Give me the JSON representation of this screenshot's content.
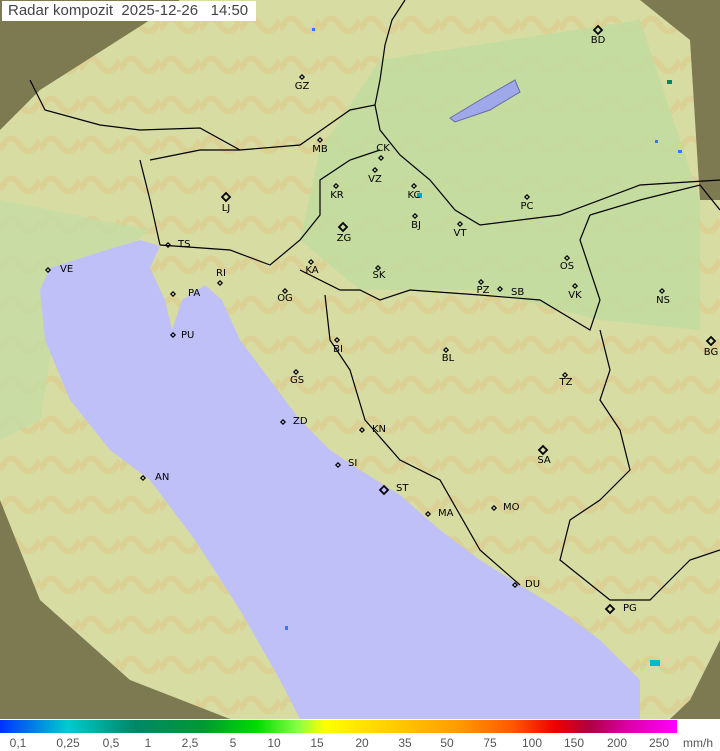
{
  "title": "Radar kompozit  2025-12-26   14:50",
  "colors": {
    "sea": "#c0c0f8",
    "land": "#c8dca0",
    "outside_coverage": "#7d7a52",
    "border": "#000000"
  },
  "stations": [
    {
      "code": "GZ"
    },
    {
      "code": "BD"
    },
    {
      "code": "MB"
    },
    {
      "code": "CK"
    },
    {
      "code": "VZ"
    },
    {
      "code": "KR"
    },
    {
      "code": "KC"
    },
    {
      "code": "LJ"
    },
    {
      "code": "ZG"
    },
    {
      "code": "BJ"
    },
    {
      "code": "VT"
    },
    {
      "code": "PC"
    },
    {
      "code": "TS"
    },
    {
      "code": "VE"
    },
    {
      "code": "KA"
    },
    {
      "code": "SK"
    },
    {
      "code": "OS"
    },
    {
      "code": "RI"
    },
    {
      "code": "PA"
    },
    {
      "code": "OG"
    },
    {
      "code": "PZ"
    },
    {
      "code": "SB"
    },
    {
      "code": "VK"
    },
    {
      "code": "NS"
    },
    {
      "code": "PU"
    },
    {
      "code": "BG"
    },
    {
      "code": "BI"
    },
    {
      "code": "BL"
    },
    {
      "code": "GS"
    },
    {
      "code": "TZ"
    },
    {
      "code": "ZD"
    },
    {
      "code": "KN"
    },
    {
      "code": "SA"
    },
    {
      "code": "SI"
    },
    {
      "code": "AN"
    },
    {
      "code": "ST"
    },
    {
      "code": "MA"
    },
    {
      "code": "MO"
    },
    {
      "code": "DU"
    },
    {
      "code": "PG"
    }
  ],
  "legend": {
    "unit": "mm/h",
    "ticks": [
      "0,1",
      "0,25",
      "0,5",
      "1",
      "2,5",
      "5",
      "10",
      "15",
      "20",
      "35",
      "50",
      "75",
      "100",
      "150",
      "200",
      "250"
    ]
  }
}
